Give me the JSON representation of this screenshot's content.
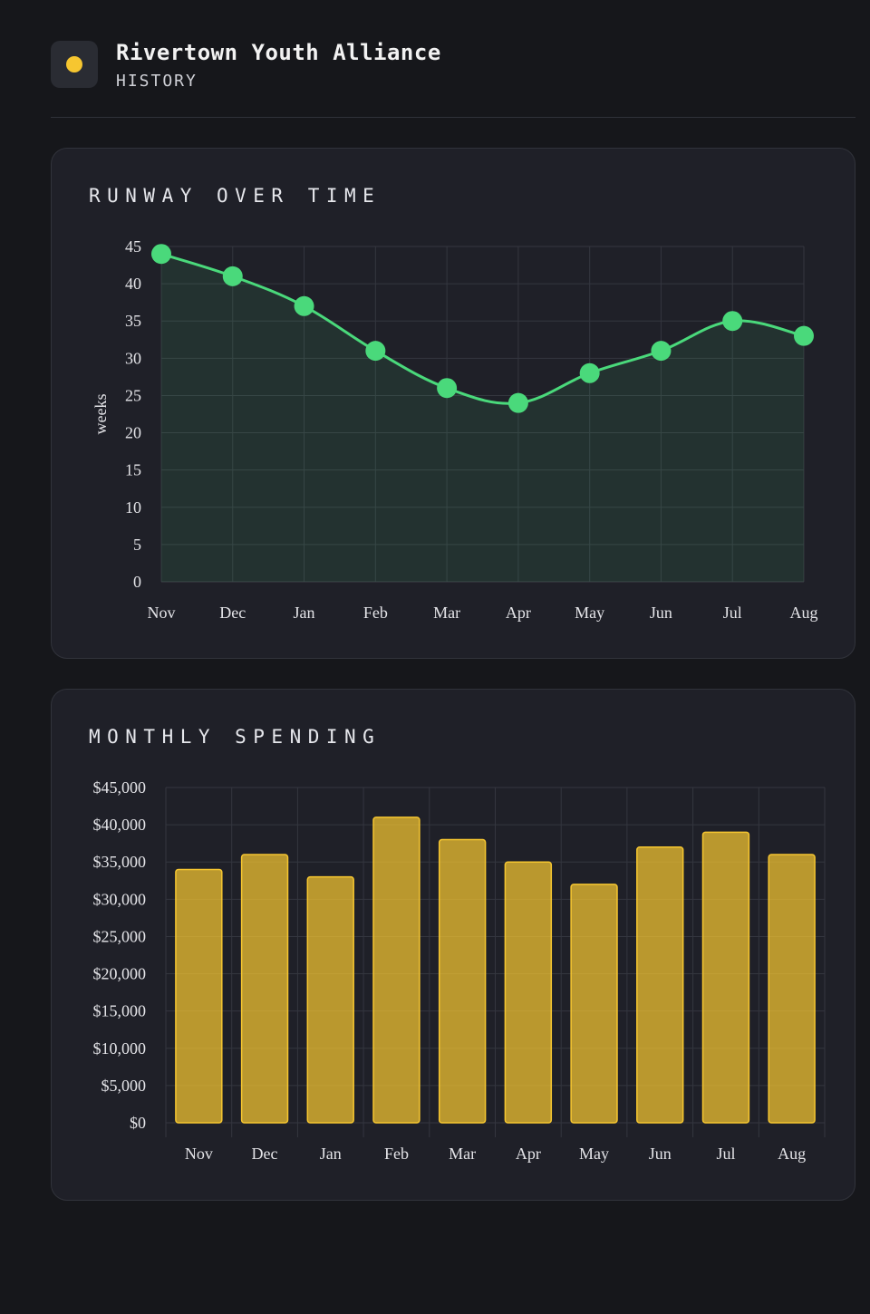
{
  "header": {
    "org_name": "Rivertown Youth Alliance",
    "section": "HISTORY",
    "logo_color": "#f6c630"
  },
  "runway_card": {
    "title": "RUNWAY OVER TIME"
  },
  "spending_card": {
    "title": "MONTHLY SPENDING"
  },
  "chart_data": [
    {
      "type": "area",
      "title": "RUNWAY OVER TIME",
      "xlabel": "",
      "ylabel": "weeks",
      "categories": [
        "Nov",
        "Dec",
        "Jan",
        "Feb",
        "Mar",
        "Apr",
        "May",
        "Jun",
        "Jul",
        "Aug"
      ],
      "values": [
        44,
        41,
        37,
        31,
        26,
        24,
        28,
        31,
        35,
        33
      ],
      "ylim": [
        0,
        45
      ],
      "yticks": [
        0,
        5,
        10,
        15,
        20,
        25,
        30,
        35,
        40,
        45
      ],
      "grid": true,
      "color": "#4ad97b"
    },
    {
      "type": "bar",
      "title": "MONTHLY SPENDING",
      "xlabel": "",
      "ylabel": "",
      "categories": [
        "Nov",
        "Dec",
        "Jan",
        "Feb",
        "Mar",
        "Apr",
        "May",
        "Jun",
        "Jul",
        "Aug"
      ],
      "values": [
        34000,
        36000,
        33000,
        41000,
        38000,
        35000,
        32000,
        37000,
        39000,
        36000
      ],
      "ylim": [
        0,
        45000
      ],
      "yticks": [
        0,
        5000,
        10000,
        15000,
        20000,
        25000,
        30000,
        35000,
        40000,
        45000
      ],
      "ytick_labels": [
        "$0",
        "$5,000",
        "$10,000",
        "$15,000",
        "$20,000",
        "$25,000",
        "$30,000",
        "$35,000",
        "$40,000",
        "$45,000"
      ],
      "grid": true,
      "color": "#f6c630"
    }
  ]
}
